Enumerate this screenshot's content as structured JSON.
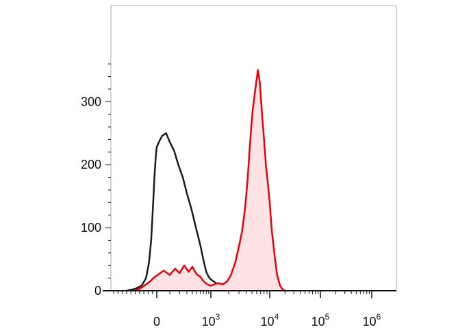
{
  "chart_data": {
    "type": "area",
    "title": "",
    "xlabel": "",
    "ylabel": "",
    "x_scale": "biexponential",
    "ylim": [
      0,
      370
    ],
    "grid": false,
    "legend": "none",
    "y_ticks": [
      {
        "value": 0,
        "label": "0"
      },
      {
        "value": 100,
        "label": "100"
      },
      {
        "value": 200,
        "label": "200"
      },
      {
        "value": 300,
        "label": "300"
      }
    ],
    "x_ticks": [
      {
        "value": 0,
        "base": "0",
        "exp": ""
      },
      {
        "value": 1000,
        "base": "10",
        "exp": "3"
      },
      {
        "value": 10000,
        "base": "10",
        "exp": "4"
      },
      {
        "value": 100000,
        "base": "10",
        "exp": "5"
      },
      {
        "value": 1000000,
        "base": "10",
        "exp": "6"
      }
    ],
    "series": [
      {
        "color": "#1a1a1a",
        "fill": "none",
        "points": [
          [
            -700,
            0
          ],
          [
            -500,
            3
          ],
          [
            -350,
            8
          ],
          [
            -250,
            20
          ],
          [
            -180,
            45
          ],
          [
            -130,
            80
          ],
          [
            -90,
            130
          ],
          [
            -50,
            185
          ],
          [
            -20,
            215
          ],
          [
            0,
            228
          ],
          [
            20,
            238
          ],
          [
            40,
            246
          ],
          [
            70,
            250
          ],
          [
            100,
            236
          ],
          [
            140,
            222
          ],
          [
            180,
            202
          ],
          [
            240,
            180
          ],
          [
            300,
            155
          ],
          [
            380,
            130
          ],
          [
            480,
            100
          ],
          [
            600,
            72
          ],
          [
            700,
            48
          ],
          [
            800,
            30
          ],
          [
            900,
            22
          ],
          [
            1000,
            18
          ],
          [
            1150,
            14
          ],
          [
            1300,
            10
          ],
          [
            1600,
            7
          ],
          [
            2000,
            5
          ],
          [
            2500,
            3
          ],
          [
            3200,
            2
          ],
          [
            4000,
            1
          ],
          [
            5000,
            0
          ]
        ]
      },
      {
        "color": "#e8000b",
        "fill": "#fde3e3",
        "points": [
          [
            -500,
            0
          ],
          [
            -350,
            5
          ],
          [
            -250,
            10
          ],
          [
            -150,
            15
          ],
          [
            -80,
            20
          ],
          [
            0,
            24
          ],
          [
            50,
            32
          ],
          [
            100,
            25
          ],
          [
            150,
            35
          ],
          [
            200,
            28
          ],
          [
            260,
            40
          ],
          [
            330,
            30
          ],
          [
            400,
            38
          ],
          [
            500,
            26
          ],
          [
            600,
            22
          ],
          [
            700,
            15
          ],
          [
            850,
            10
          ],
          [
            1000,
            8
          ],
          [
            1300,
            12
          ],
          [
            1600,
            10
          ],
          [
            1900,
            15
          ],
          [
            2200,
            25
          ],
          [
            2600,
            45
          ],
          [
            3000,
            70
          ],
          [
            3400,
            95
          ],
          [
            3800,
            130
          ],
          [
            4200,
            175
          ],
          [
            4600,
            230
          ],
          [
            5100,
            285
          ],
          [
            5700,
            320
          ],
          [
            6300,
            350
          ],
          [
            6800,
            330
          ],
          [
            7400,
            280
          ],
          [
            8000,
            240
          ],
          [
            8600,
            200
          ],
          [
            9300,
            170
          ],
          [
            10000,
            140
          ],
          [
            11000,
            95
          ],
          [
            12500,
            55
          ],
          [
            14000,
            25
          ],
          [
            16000,
            8
          ],
          [
            18000,
            2
          ],
          [
            20000,
            0
          ]
        ]
      }
    ]
  }
}
